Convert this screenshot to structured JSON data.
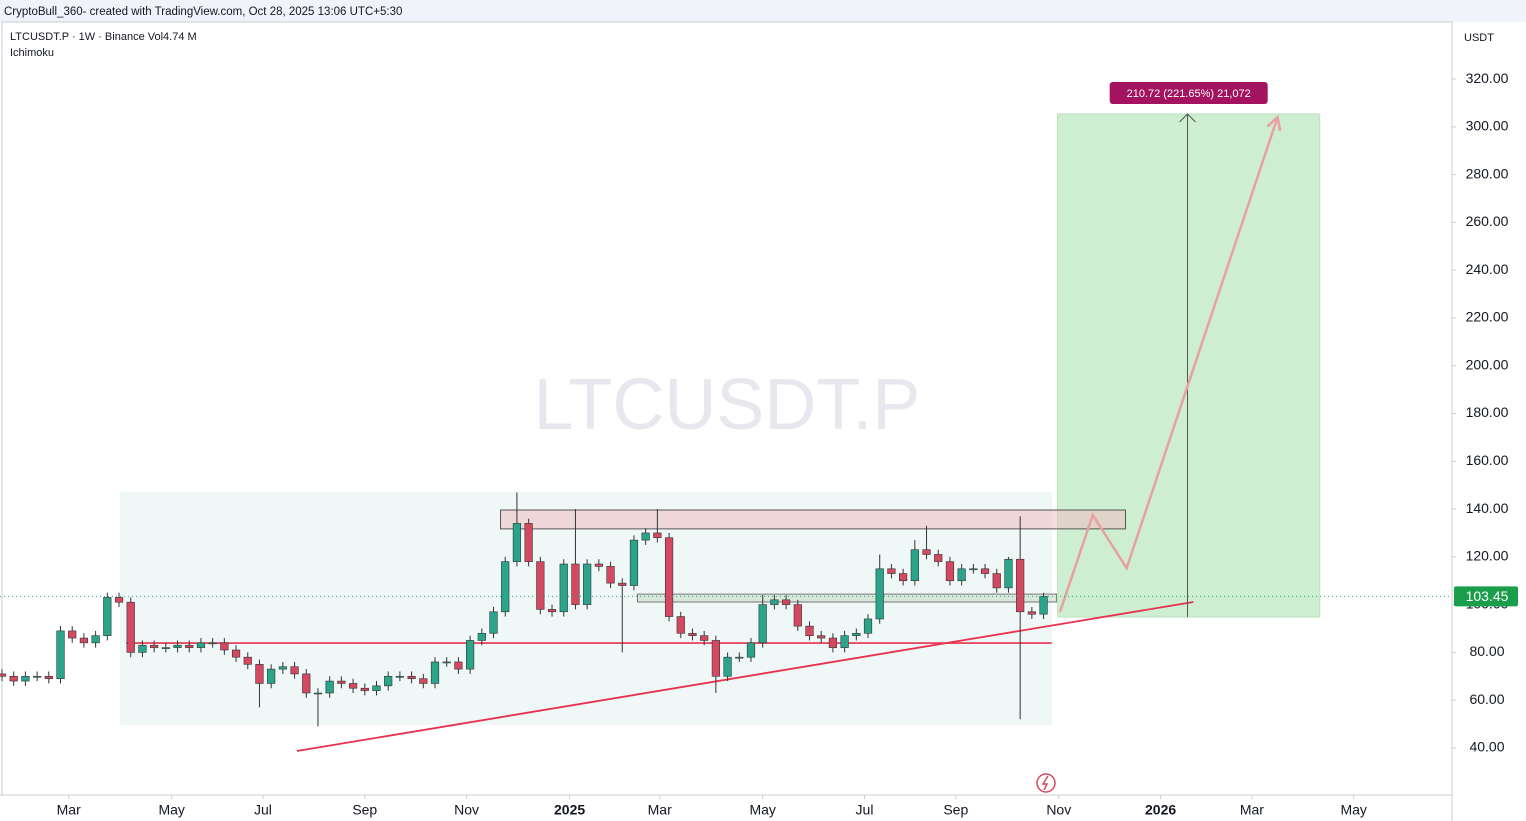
{
  "header": {
    "credit": "CryptoBull_360- created with TradingView.com, Oct 28, 2025 13:06 UTC+5:30",
    "symbol": "LTCUSDT.P · 1W · Binance  Vol4.74 M",
    "indicator": "Ichimoku"
  },
  "chart_data": {
    "type": "candlestick",
    "watermark": "LTCUSDT.P",
    "y_unit": "USDT",
    "up_color": "#2aa58a",
    "down_color": "#d4495f",
    "grid": false,
    "xlim": [
      -0.17,
      123.9
    ],
    "ylim": [
      20.3,
      343.9
    ],
    "xticks": [
      {
        "value": 5.7,
        "label": "Mar"
      },
      {
        "value": 14.5,
        "label": "May"
      },
      {
        "value": 22.3,
        "label": "Jul"
      },
      {
        "value": 31.0,
        "label": "Sep"
      },
      {
        "value": 39.7,
        "label": "Nov"
      },
      {
        "value": 48.5,
        "label": "2025"
      },
      {
        "value": 56.2,
        "label": "Mar"
      },
      {
        "value": 65.0,
        "label": "May"
      },
      {
        "value": 73.7,
        "label": "Jul"
      },
      {
        "value": 81.5,
        "label": "Sep"
      },
      {
        "value": 90.3,
        "label": "Nov"
      },
      {
        "value": 99.0,
        "label": "2026"
      },
      {
        "value": 106.8,
        "label": "Mar"
      },
      {
        "value": 115.5,
        "label": "May"
      }
    ],
    "yticks": [
      {
        "value": 40,
        "label": "40.00"
      },
      {
        "value": 60,
        "label": "60.00"
      },
      {
        "value": 80,
        "label": "80.00"
      },
      {
        "value": 100,
        "label": "100.00"
      },
      {
        "value": 120,
        "label": "120.00"
      },
      {
        "value": 140,
        "label": "140.00"
      },
      {
        "value": 160,
        "label": "160.00"
      },
      {
        "value": 180,
        "label": "180.00"
      },
      {
        "value": 200,
        "label": "200.00"
      },
      {
        "value": 220,
        "label": "220.00"
      },
      {
        "value": 240,
        "label": "240.00"
      },
      {
        "value": 260,
        "label": "260.00"
      },
      {
        "value": 280,
        "label": "280.00"
      },
      {
        "value": 300,
        "label": "300.00"
      },
      {
        "value": 320,
        "label": "320.00"
      }
    ],
    "open": [
      71,
      70,
      68,
      70,
      70,
      69,
      89,
      86,
      84,
      87,
      103,
      101,
      80,
      83,
      82,
      82,
      83,
      82,
      84,
      84,
      81,
      78,
      75,
      67,
      73,
      74,
      71,
      63,
      63,
      68,
      67,
      65,
      64,
      66,
      70,
      70,
      69,
      67,
      76,
      76,
      73,
      85,
      88,
      97,
      118,
      134,
      118,
      98,
      97,
      117,
      100,
      117,
      116,
      109,
      108,
      127,
      130,
      128,
      95,
      88,
      87,
      85,
      70,
      78,
      78,
      84,
      100,
      102,
      100,
      91,
      87,
      86,
      82,
      87,
      88,
      94,
      115,
      113,
      110,
      123,
      121,
      118,
      110,
      115,
      115,
      113,
      107,
      119,
      97,
      96
    ],
    "high": [
      73,
      72,
      72,
      72,
      72,
      91,
      91,
      88,
      89,
      105,
      105,
      103,
      85,
      85,
      84,
      85,
      85,
      86,
      86,
      86,
      83,
      80,
      77,
      75,
      76,
      76,
      73,
      65,
      70,
      70,
      69,
      67,
      68,
      72,
      72,
      72,
      71,
      78,
      78,
      78,
      87,
      90,
      99,
      120,
      147,
      136,
      120,
      100,
      119,
      140,
      119,
      119,
      118,
      111,
      129,
      132,
      140,
      130,
      97,
      90,
      89,
      87,
      80,
      80,
      86,
      104,
      104,
      104,
      102,
      93,
      89,
      88,
      89,
      90,
      96,
      121,
      117,
      115,
      127,
      133,
      123,
      120,
      117,
      117,
      117,
      115,
      120,
      137,
      99,
      105
    ],
    "low": [
      68,
      66,
      66,
      68,
      67,
      67,
      84,
      82,
      82,
      85,
      99,
      78,
      78,
      80,
      80,
      80,
      80,
      80,
      82,
      79,
      76,
      73,
      57,
      65,
      71,
      69,
      61,
      49,
      61,
      65,
      63,
      62,
      62,
      64,
      68,
      67,
      65,
      65,
      74,
      71,
      71,
      83,
      86,
      95,
      116,
      116,
      96,
      95,
      95,
      98,
      98,
      114,
      107,
      80,
      106,
      125,
      126,
      93,
      86,
      85,
      83,
      63,
      68,
      76,
      76,
      82,
      98,
      98,
      89,
      85,
      84,
      80,
      80,
      85,
      86,
      92,
      111,
      108,
      108,
      119,
      116,
      108,
      108,
      113,
      111,
      105,
      105,
      52,
      94,
      94
    ],
    "close": [
      70,
      68,
      70,
      70,
      69,
      89,
      86,
      84,
      87,
      103,
      101,
      80,
      83,
      82,
      82,
      83,
      82,
      84,
      84,
      81,
      78,
      75,
      67,
      73,
      74,
      71,
      63,
      63,
      68,
      67,
      65,
      64,
      66,
      70,
      70,
      69,
      67,
      76,
      76,
      73,
      85,
      88,
      97,
      118,
      134,
      118,
      98,
      97,
      117,
      100,
      117,
      116,
      109,
      108,
      127,
      130,
      128,
      95,
      88,
      87,
      85,
      70,
      78,
      78,
      84,
      100,
      102,
      100,
      91,
      87,
      86,
      82,
      87,
      88,
      94,
      115,
      113,
      110,
      123,
      121,
      118,
      110,
      115,
      115,
      113,
      107,
      119,
      97,
      96,
      103.45
    ],
    "annotations": {
      "target_box": {
        "x": [
          90.2,
          112.6
        ],
        "y": [
          94.8,
          305.4
        ],
        "label": "210.72 (221.65%) 21,072"
      },
      "resistance_zone": {
        "x": [
          42.6,
          96.0
        ],
        "y": [
          131.7,
          139.6
        ]
      },
      "support_zone": {
        "x": [
          54.3,
          90.1
        ],
        "y": [
          101.1,
          104.4
        ]
      },
      "support_line": {
        "x": [
          10.6,
          89.7
        ],
        "y": 83.9
      },
      "trendline": {
        "x": [
          25.2,
          101.8
        ],
        "y": [
          38.7,
          101.1
        ]
      },
      "projection": {
        "x": [
          90.4,
          93.2,
          96.1,
          109.0
        ],
        "y": [
          96.9,
          137.5,
          115.3,
          304.1
        ]
      },
      "measure_arrow": {
        "x": 101.3,
        "y": [
          94.8,
          305.4
        ]
      }
    }
  }
}
